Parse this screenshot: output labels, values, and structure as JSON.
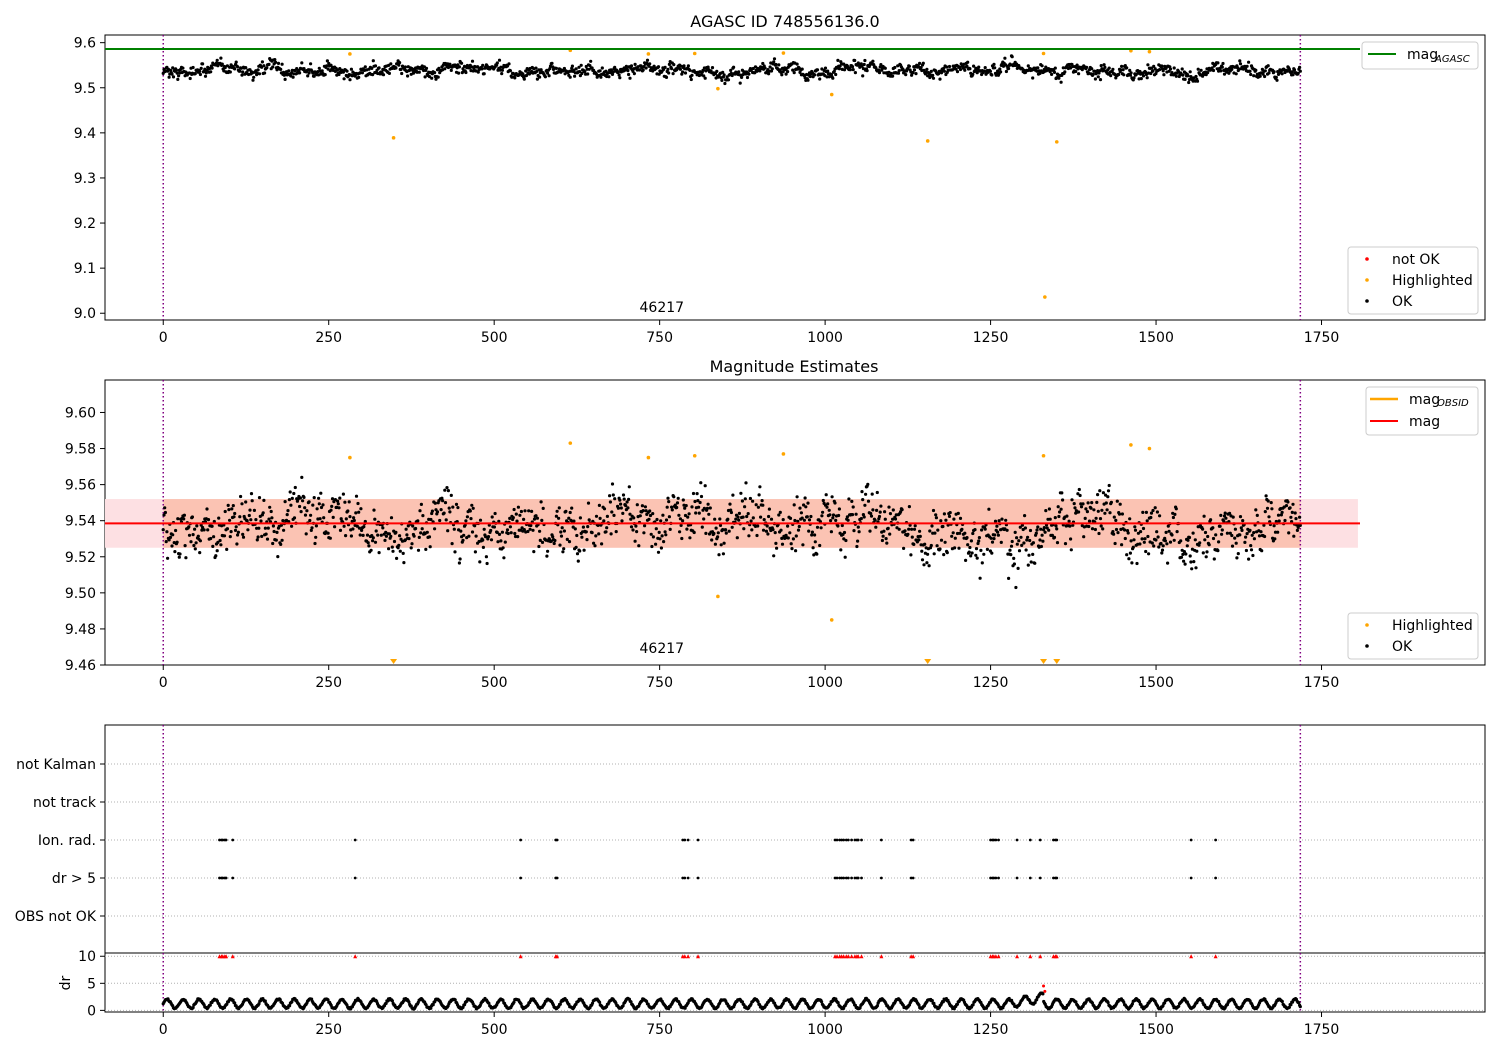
{
  "figure": {
    "colors": {
      "ok": "#000000",
      "highlighted": "#ffa500",
      "not_ok": "#ff0000",
      "agasc_line": "#008000",
      "obsid_line": "#ffa500",
      "mag_line": "#ff0000",
      "mag_band": "#f9b9a3",
      "mag_band_outer": "#fde0e3",
      "obs_boundary": "#800080",
      "grid": "#b0b0b0"
    }
  },
  "chart_data": [
    {
      "type": "scatter",
      "title": "AGASC ID 748556136.0",
      "xlim": [
        -88,
        1997
      ],
      "ylim": [
        8.985,
        9.617
      ],
      "x_ticks": [
        0,
        250,
        500,
        750,
        1000,
        1250,
        1500,
        1750
      ],
      "y_ticks": [
        9.0,
        9.1,
        9.2,
        9.3,
        9.4,
        9.5,
        9.6
      ],
      "y_tick_labels": [
        "9.0",
        "9.1",
        "9.2",
        "9.3",
        "9.4",
        "9.5",
        "9.6"
      ],
      "obsid_boundaries": [
        0,
        1718
      ],
      "obsid_label": {
        "text": "46217",
        "x": 859,
        "y": 9.003
      },
      "mag_agasc": 9.586,
      "ok_points": {
        "x_range": [
          0,
          1718
        ],
        "center": 9.538,
        "spread": 0.018,
        "count": 1560
      },
      "highlighted_points": [
        {
          "x": 282,
          "y": 9.575
        },
        {
          "x": 348,
          "y": 9.389
        },
        {
          "x": 615,
          "y": 9.583
        },
        {
          "x": 733,
          "y": 9.575
        },
        {
          "x": 803,
          "y": 9.576
        },
        {
          "x": 838,
          "y": 9.498
        },
        {
          "x": 937,
          "y": 9.577
        },
        {
          "x": 1010,
          "y": 9.485
        },
        {
          "x": 1155,
          "y": 9.382
        },
        {
          "x": 1330,
          "y": 9.576
        },
        {
          "x": 1332,
          "y": 9.036
        },
        {
          "x": 1350,
          "y": 9.38
        },
        {
          "x": 1462,
          "y": 9.582
        },
        {
          "x": 1490,
          "y": 9.58
        }
      ],
      "legend_top": [
        {
          "label": "mag",
          "subscript": "AGASC"
        }
      ],
      "legend_bottom": [
        "not OK",
        "Highlighted",
        "OK"
      ]
    },
    {
      "type": "scatter",
      "title": "Magnitude Estimates",
      "xlim": [
        -88,
        1997
      ],
      "ylim": [
        9.46,
        9.618
      ],
      "x_ticks": [
        0,
        250,
        500,
        750,
        1000,
        1250,
        1500,
        1750
      ],
      "y_ticks": [
        9.46,
        9.48,
        9.5,
        9.52,
        9.54,
        9.56,
        9.58,
        9.6
      ],
      "y_tick_labels": [
        "9.46",
        "9.48",
        "9.50",
        "9.52",
        "9.54",
        "9.56",
        "9.58",
        "9.60"
      ],
      "obsid_boundaries": [
        0,
        1718
      ],
      "obsid_label": {
        "text": "46217",
        "x": 859,
        "y": 9.464
      },
      "mag": 9.5385,
      "mag_band": [
        9.525,
        9.552
      ],
      "mag_band_outer_xmax": 1805,
      "ok_points": {
        "x_range": [
          0,
          1718
        ],
        "center": 9.538,
        "spread": 0.018,
        "count": 1560
      },
      "highlighted_points": [
        {
          "x": 282,
          "y": 9.575
        },
        {
          "x": 615,
          "y": 9.583
        },
        {
          "x": 733,
          "y": 9.575
        },
        {
          "x": 803,
          "y": 9.576
        },
        {
          "x": 838,
          "y": 9.498
        },
        {
          "x": 937,
          "y": 9.577
        },
        {
          "x": 1010,
          "y": 9.485
        },
        {
          "x": 1330,
          "y": 9.576
        },
        {
          "x": 1462,
          "y": 9.582
        },
        {
          "x": 1490,
          "y": 9.58
        }
      ],
      "below_range_markers": [
        348,
        1155,
        1330,
        1350
      ],
      "legend_top": [
        {
          "label": "mag",
          "subscript": "OBSID"
        },
        {
          "label": "mag",
          "subscript": ""
        }
      ],
      "legend_bottom": [
        "Highlighted",
        "OK"
      ]
    },
    {
      "type": "scatter",
      "xlim": [
        -88,
        1997
      ],
      "categories": [
        "not Kalman",
        "not track",
        "Ion. rad.",
        "dr > 5",
        "OBS not OK"
      ],
      "obsid_boundaries": [
        0,
        1718
      ],
      "flag_times": [
        85,
        88,
        90,
        93,
        95,
        105,
        290,
        540,
        593,
        595,
        785,
        788,
        793,
        808,
        1015,
        1018,
        1022,
        1025,
        1028,
        1032,
        1035,
        1040,
        1045,
        1048,
        1050,
        1055,
        1085,
        1130,
        1133,
        1250,
        1253,
        1255,
        1258,
        1262,
        1290,
        1310,
        1325,
        1345,
        1348,
        1350,
        1553,
        1590
      ],
      "flag_rows": [
        "Ion. rad.",
        "dr > 5"
      ]
    },
    {
      "type": "scatter",
      "ylabel": "dr",
      "xlim": [
        -88,
        1997
      ],
      "ylim": [
        -0.3,
        10.6
      ],
      "x_ticks": [
        0,
        250,
        500,
        750,
        1000,
        1250,
        1500,
        1750
      ],
      "y_ticks": [
        0,
        5,
        10
      ],
      "y_tick_labels": [
        "0",
        "5",
        "10"
      ],
      "obsid_boundaries": [
        0,
        1718
      ],
      "dr_points": {
        "x_range": [
          0,
          1718
        ],
        "typical_range": [
          0.2,
          2.7
        ]
      },
      "high_dr_marker_value": 10,
      "extra_points": [
        {
          "x": 1330,
          "y": 4.5
        },
        {
          "x": 1332,
          "y": 3.5
        }
      ]
    }
  ]
}
